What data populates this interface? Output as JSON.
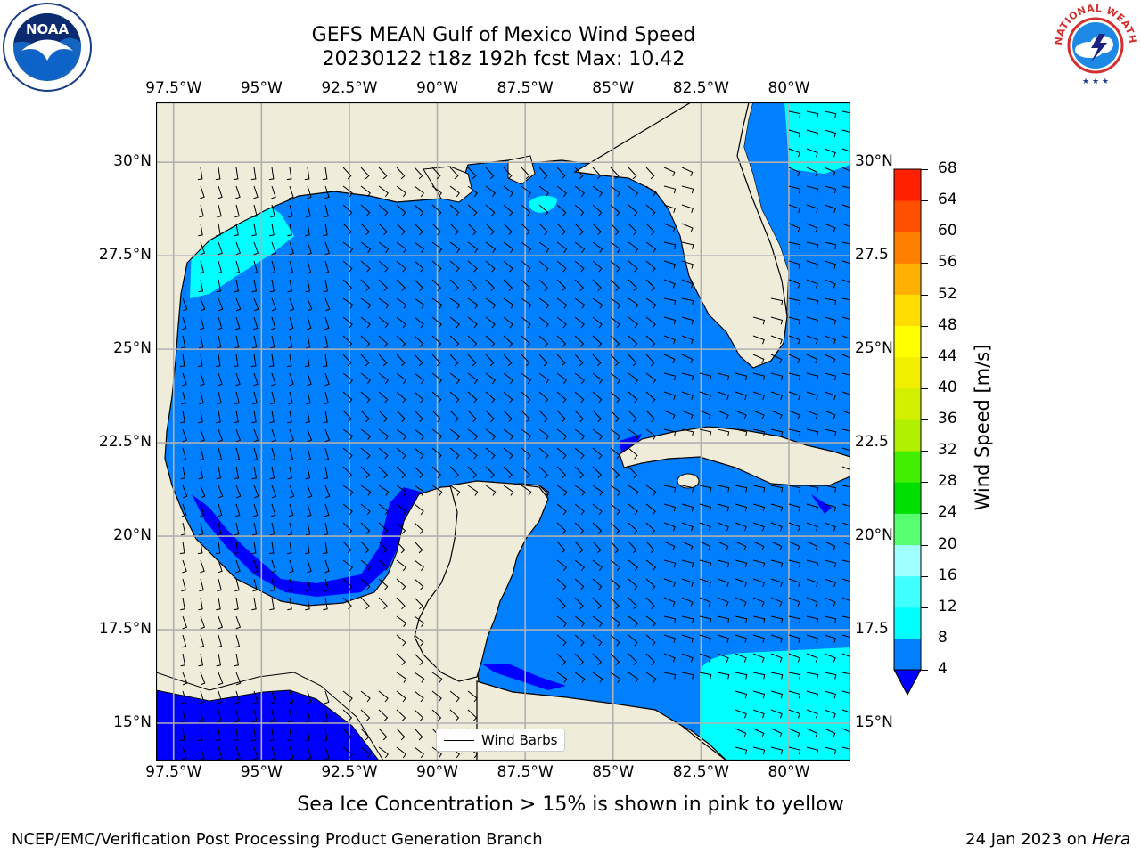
{
  "title": {
    "line1": "GEFS MEAN Gulf of Mexico Wind Speed",
    "line2": "20230122 t18z 192h fcst   Max: 10.42"
  },
  "logos": {
    "left": "noa-logo-icon",
    "right": "nws-logo-icon",
    "right_text": "NATIONAL WEATHER SERVICE"
  },
  "map": {
    "lon_ticks": [
      "97.5°W",
      "95°W",
      "92.5°W",
      "90°W",
      "87.5°W",
      "85°W",
      "82.5°W",
      "80°W"
    ],
    "lat_ticks": [
      "30°N",
      "27.5°N",
      "25°N",
      "22.5°N",
      "20°N",
      "17.5°N",
      "15°N"
    ],
    "lat_ticks_right": [
      "30°N",
      "27.5",
      "25°N",
      "22.5",
      "20°N",
      "17.5",
      "15°N"
    ],
    "lon_range": [
      -98,
      -78.25
    ],
    "lat_range": [
      14,
      31.6
    ],
    "land_color": "#efedda",
    "ocean_color": "#0080ff",
    "legend_label": "Wind Barbs"
  },
  "colorbar": {
    "label": "Wind Speed [m/s]",
    "ticks": [
      "68",
      "64",
      "60",
      "56",
      "52",
      "48",
      "44",
      "40",
      "36",
      "32",
      "28",
      "24",
      "20",
      "16",
      "12",
      "8",
      "4"
    ],
    "colors": [
      "#0000ff",
      "#0080ff",
      "#00ffff",
      "#40ffff",
      "#a0ffff",
      "#56ff70",
      "#00e000",
      "#40f000",
      "#b0f000",
      "#d0f000",
      "#f0f000",
      "#ffff00",
      "#ffdd00",
      "#ffb000",
      "#ff8000",
      "#ff5000",
      "#ff2000",
      "#ff0000"
    ]
  },
  "footer": {
    "note": "Sea Ice Concentration > 15% is shown in pink to yellow",
    "left": "NCEP/EMC/Verification Post Processing Product Generation Branch",
    "right_date": "24 Jan 2023 on ",
    "right_host": "Hera"
  }
}
